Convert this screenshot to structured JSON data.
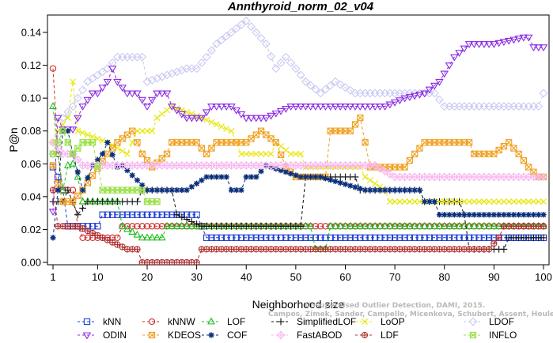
{
  "chart_data": {
    "type": "line",
    "title": "Annthyroid_norm_02_v04",
    "xlabel": "Neighborhood size",
    "ylabel": "P@n",
    "xlim": [
      1,
      100
    ],
    "ylim": [
      0,
      0.145
    ],
    "xticks": [
      "1",
      "10",
      "20",
      "30",
      "40",
      "50",
      "60",
      "70",
      "80",
      "90",
      "100"
    ],
    "yticks": [
      "0.00",
      "0.02",
      "0.04",
      "0.06",
      "0.08",
      "0.10",
      "0.12",
      "0.14"
    ],
    "grid": false,
    "legend_position": "bottom",
    "watermark": [
      "Campos, Zimek, Sander, Campello, Micenkova, Schubert, Assent, Houle",
      "Unsupervised Outlier Detection, DAMI, 2015."
    ],
    "series": [
      {
        "name": "kNN",
        "color": "#1f3fd1",
        "marker": "square",
        "points": [
          [
            1,
            0.058
          ],
          [
            2,
            0.052
          ],
          [
            3,
            0.044
          ],
          [
            4,
            0.022
          ],
          [
            10,
            0.022
          ],
          [
            11,
            0.029
          ],
          [
            30,
            0.029
          ],
          [
            31,
            0.022
          ],
          [
            32,
            0.015
          ],
          [
            100,
            0.015
          ]
        ]
      },
      {
        "name": "kNNW",
        "color": "#d12a2a",
        "marker": "circle",
        "points": [
          [
            1,
            0.118
          ],
          [
            2,
            0.066
          ],
          [
            3,
            0.044
          ],
          [
            5,
            0.044
          ],
          [
            6,
            0.022
          ],
          [
            7,
            0.015
          ],
          [
            14,
            0.015
          ],
          [
            15,
            0.022
          ],
          [
            100,
            0.022
          ]
        ]
      },
      {
        "name": "LOF",
        "color": "#22bb22",
        "marker": "triangle-up",
        "points": [
          [
            1,
            0.095
          ],
          [
            2,
            0.066
          ],
          [
            3,
            0.044
          ],
          [
            4,
            0.059
          ],
          [
            5,
            0.06
          ],
          [
            6,
            0.052
          ],
          [
            7,
            0.037
          ],
          [
            14,
            0.037
          ],
          [
            15,
            0.022
          ],
          [
            19,
            0.015
          ],
          [
            23,
            0.015
          ],
          [
            24,
            0.022
          ],
          [
            53,
            0.022
          ],
          [
            54,
            0.008
          ],
          [
            56,
            0.008
          ],
          [
            57,
            0.022
          ],
          [
            100,
            0.022
          ]
        ]
      },
      {
        "name": "SimplifiedLOF",
        "color": "#111111",
        "marker": "plus",
        "points": [
          [
            1,
            0.037
          ],
          [
            3,
            0.037
          ],
          [
            4,
            0.044
          ],
          [
            6,
            0.029
          ],
          [
            8,
            0.037
          ],
          [
            18,
            0.037
          ],
          [
            19,
            0.044
          ],
          [
            25,
            0.044
          ],
          [
            26,
            0.029
          ],
          [
            31,
            0.022
          ],
          [
            51,
            0.022
          ],
          [
            52,
            0.052
          ],
          [
            62,
            0.052
          ],
          [
            63,
            0.044
          ],
          [
            75,
            0.044
          ],
          [
            76,
            0.037
          ],
          [
            83,
            0.037
          ],
          [
            84,
            0.029
          ],
          [
            85,
            0.008
          ],
          [
            92,
            0.008
          ],
          [
            93,
            0.015
          ],
          [
            100,
            0.015
          ]
        ]
      },
      {
        "name": "LoOP",
        "color": "#e6e600",
        "marker": "x",
        "points": [
          [
            1,
            0.073
          ],
          [
            2,
            0.08
          ],
          [
            4,
            0.088
          ],
          [
            5,
            0.11
          ],
          [
            6,
            0.08
          ],
          [
            12,
            0.073
          ],
          [
            16,
            0.066
          ],
          [
            18,
            0.08
          ],
          [
            21,
            0.08
          ],
          [
            22,
            0.088
          ],
          [
            25,
            0.095
          ],
          [
            31,
            0.088
          ],
          [
            37,
            0.08
          ],
          [
            39,
            0.066
          ],
          [
            45,
            0.066
          ],
          [
            46,
            0.073
          ],
          [
            49,
            0.066
          ],
          [
            51,
            0.066
          ],
          [
            52,
            0.058
          ],
          [
            63,
            0.058
          ],
          [
            64,
            0.052
          ],
          [
            68,
            0.044
          ],
          [
            69,
            0.037
          ],
          [
            100,
            0.037
          ]
        ]
      },
      {
        "name": "LDOF",
        "color": "#c9c9f3",
        "marker": "diamond",
        "points": [
          [
            1,
            0.066
          ],
          [
            3,
            0.088
          ],
          [
            5,
            0.095
          ],
          [
            8,
            0.11
          ],
          [
            12,
            0.118
          ],
          [
            14,
            0.125
          ],
          [
            19,
            0.125
          ],
          [
            20,
            0.11
          ],
          [
            28,
            0.118
          ],
          [
            30,
            0.118
          ],
          [
            32,
            0.125
          ],
          [
            34,
            0.133
          ],
          [
            37,
            0.14
          ],
          [
            40,
            0.147
          ],
          [
            42,
            0.14
          ],
          [
            44,
            0.133
          ],
          [
            46,
            0.118
          ],
          [
            48,
            0.125
          ],
          [
            50,
            0.118
          ],
          [
            52,
            0.11
          ],
          [
            55,
            0.103
          ],
          [
            58,
            0.11
          ],
          [
            62,
            0.103
          ],
          [
            78,
            0.103
          ],
          [
            80,
            0.095
          ],
          [
            97,
            0.095
          ],
          [
            99,
            0.095
          ],
          [
            100,
            0.103
          ]
        ]
      },
      {
        "name": "ODIN",
        "color": "#8a2be2",
        "marker": "triangle-down",
        "points": [
          [
            1,
            0.031
          ],
          [
            2,
            0.088
          ],
          [
            3,
            0.081
          ],
          [
            5,
            0.081
          ],
          [
            7,
            0.095
          ],
          [
            9,
            0.103
          ],
          [
            10,
            0.103
          ],
          [
            12,
            0.11
          ],
          [
            13,
            0.118
          ],
          [
            14,
            0.11
          ],
          [
            16,
            0.103
          ],
          [
            18,
            0.103
          ],
          [
            20,
            0.095
          ],
          [
            22,
            0.103
          ],
          [
            24,
            0.103
          ],
          [
            25,
            0.095
          ],
          [
            28,
            0.088
          ],
          [
            31,
            0.088
          ],
          [
            33,
            0.095
          ],
          [
            37,
            0.095
          ],
          [
            40,
            0.088
          ],
          [
            44,
            0.088
          ],
          [
            49,
            0.095
          ],
          [
            54,
            0.095
          ],
          [
            58,
            0.095
          ],
          [
            63,
            0.095
          ],
          [
            68,
            0.095
          ],
          [
            72,
            0.1
          ],
          [
            76,
            0.103
          ],
          [
            79,
            0.11
          ],
          [
            82,
            0.125
          ],
          [
            85,
            0.133
          ],
          [
            90,
            0.133
          ],
          [
            96,
            0.137
          ],
          [
            97,
            0.137
          ],
          [
            98,
            0.131
          ],
          [
            100,
            0.131
          ]
        ]
      },
      {
        "name": "KDEOS",
        "color": "#f0a020",
        "marker": "square-x",
        "points": [
          [
            1,
            0.059
          ],
          [
            3,
            0.037
          ],
          [
            5,
            0.037
          ],
          [
            7,
            0.044
          ],
          [
            12,
            0.066
          ],
          [
            14,
            0.073
          ],
          [
            17,
            0.08
          ],
          [
            19,
            0.066
          ],
          [
            21,
            0.058
          ],
          [
            24,
            0.066
          ],
          [
            25,
            0.073
          ],
          [
            30,
            0.073
          ],
          [
            32,
            0.066
          ],
          [
            34,
            0.073
          ],
          [
            40,
            0.073
          ],
          [
            43,
            0.08
          ],
          [
            46,
            0.073
          ],
          [
            48,
            0.058
          ],
          [
            50,
            0.052
          ],
          [
            56,
            0.052
          ],
          [
            57,
            0.08
          ],
          [
            61,
            0.08
          ],
          [
            63,
            0.088
          ],
          [
            64,
            0.073
          ],
          [
            65,
            0.058
          ],
          [
            72,
            0.058
          ],
          [
            74,
            0.066
          ],
          [
            76,
            0.073
          ],
          [
            85,
            0.073
          ],
          [
            86,
            0.066
          ],
          [
            88,
            0.066
          ],
          [
            90,
            0.066
          ],
          [
            93,
            0.073
          ],
          [
            95,
            0.066
          ],
          [
            97,
            0.058
          ],
          [
            99,
            0.052
          ],
          [
            100,
            0.052
          ]
        ]
      },
      {
        "name": "COF",
        "color": "#0a2f7a",
        "marker": "asterisk",
        "points": [
          [
            1,
            0.015
          ],
          [
            2,
            0.044
          ],
          [
            3,
            0.08
          ],
          [
            4,
            0.08
          ],
          [
            5,
            0.066
          ],
          [
            7,
            0.044
          ],
          [
            9,
            0.059
          ],
          [
            11,
            0.066
          ],
          [
            12,
            0.073
          ],
          [
            14,
            0.058
          ],
          [
            15,
            0.059
          ],
          [
            20,
            0.044
          ],
          [
            28,
            0.044
          ],
          [
            32,
            0.052
          ],
          [
            36,
            0.052
          ],
          [
            37,
            0.044
          ],
          [
            39,
            0.044
          ],
          [
            40,
            0.052
          ],
          [
            42,
            0.052
          ],
          [
            44,
            0.059
          ],
          [
            51,
            0.052
          ],
          [
            55,
            0.052
          ],
          [
            64,
            0.044
          ],
          [
            75,
            0.044
          ],
          [
            76,
            0.037
          ],
          [
            78,
            0.037
          ],
          [
            79,
            0.029
          ],
          [
            100,
            0.029
          ]
        ]
      },
      {
        "name": "FastABOD",
        "color": "#f7b8f0",
        "marker": "diamond-plus",
        "points": [
          [
            1,
            0.073
          ],
          [
            3,
            0.066
          ],
          [
            5,
            0.066
          ],
          [
            7,
            0.059
          ],
          [
            20,
            0.059
          ],
          [
            24,
            0.059
          ],
          [
            31,
            0.059
          ],
          [
            55,
            0.059
          ],
          [
            66,
            0.059
          ],
          [
            70,
            0.052
          ],
          [
            92,
            0.052
          ],
          [
            100,
            0.052
          ]
        ]
      },
      {
        "name": "LDF",
        "color": "#b03030",
        "marker": "circle-plus",
        "points": [
          [
            1,
            0.044
          ],
          [
            2,
            0.022
          ],
          [
            6,
            0.022
          ],
          [
            16,
            0.008
          ],
          [
            18,
            0.008
          ],
          [
            19,
            0.0
          ],
          [
            30,
            0.0
          ],
          [
            31,
            0.008
          ],
          [
            89,
            0.008
          ],
          [
            91,
            0.015
          ],
          [
            92,
            0.022
          ],
          [
            100,
            0.022
          ]
        ]
      },
      {
        "name": "INFLO",
        "color": "#9be04a",
        "marker": "square-star",
        "points": [
          [
            1,
            0.066
          ],
          [
            3,
            0.08
          ],
          [
            5,
            0.066
          ],
          [
            7,
            0.073
          ],
          [
            9,
            0.073
          ],
          [
            11,
            0.044
          ],
          [
            19,
            0.044
          ],
          [
            20,
            0.037
          ],
          [
            21,
            0.037
          ],
          [
            22,
            0.037
          ]
        ]
      }
    ]
  }
}
